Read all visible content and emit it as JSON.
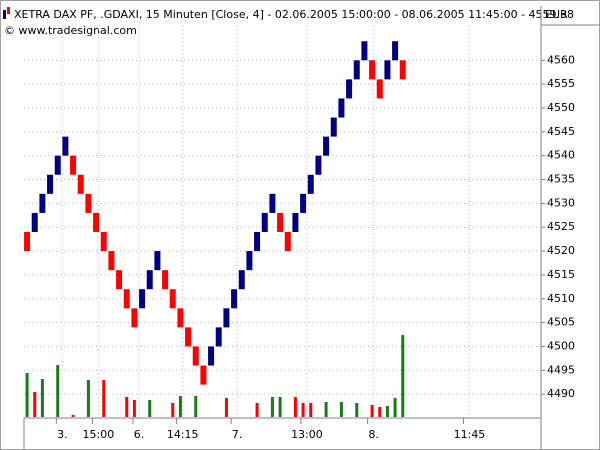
{
  "chart_data": {
    "type": "renko",
    "title": "XETRA DAX PF, .GDAXI, 15 Minuten [Close, 4] - 02.06.2005 15:00:00 - 08.06.2005 11:45:00 - 4559.38",
    "currency": "EUR",
    "copyright": "© www.tradesignal.com",
    "up_color": "#000080",
    "down_color": "#ff0000",
    "open": [
      4524,
      4524,
      4528,
      4532,
      4536,
      4540,
      4540,
      4536,
      4532,
      4528,
      4524,
      4520,
      4516,
      4512,
      4508,
      4508,
      4512,
      4516,
      4516,
      4512,
      4508,
      4504,
      4500,
      4496,
      4496,
      4500,
      4504,
      4508,
      4512,
      4516,
      4520,
      4524,
      4528,
      4528,
      4524,
      4524,
      4528,
      4532,
      4536,
      4540,
      4544,
      4548,
      4552,
      4556,
      4560,
      4560,
      4556,
      4556,
      4560,
      4560
    ],
    "close": [
      4520,
      4528,
      4532,
      4536,
      4540,
      4544,
      4536,
      4532,
      4528,
      4524,
      4520,
      4516,
      4512,
      4508,
      4504,
      4512,
      4516,
      4520,
      4512,
      4508,
      4504,
      4500,
      4496,
      4492,
      4500,
      4504,
      4508,
      4512,
      4516,
      4520,
      4524,
      4528,
      4532,
      4524,
      4520,
      4528,
      4532,
      4536,
      4540,
      4544,
      4548,
      4552,
      4556,
      4560,
      4564,
      4556,
      4552,
      4560,
      4564,
      4556
    ],
    "volume": [
      44,
      25,
      38,
      null,
      52,
      null,
      2,
      null,
      37,
      null,
      37,
      null,
      null,
      20,
      17,
      null,
      17,
      null,
      null,
      14,
      21,
      null,
      21,
      null,
      null,
      null,
      19,
      null,
      null,
      null,
      14,
      null,
      20,
      20,
      null,
      20,
      14,
      14,
      null,
      15,
      null,
      15,
      null,
      14,
      null,
      12,
      10,
      11,
      19,
      82
    ],
    "volume_colors": [
      "#1a7a1a",
      "#ff0000",
      "#1a7a1a",
      null,
      "#1a7a1a",
      null,
      "#ff0000",
      null,
      "#1a7a1a",
      null,
      "#ff0000",
      null,
      null,
      "#ff0000",
      "#ff0000",
      null,
      "#1a7a1a",
      null,
      null,
      "#ff0000",
      "#1a7a1a",
      null,
      "#1a7a1a",
      null,
      null,
      null,
      "#ff0000",
      null,
      null,
      null,
      "#ff0000",
      null,
      "#1a7a1a",
      "#1a7a1a",
      null,
      "#ff0000",
      "#ff0000",
      "#ff0000",
      null,
      "#1a7a1a",
      null,
      "#1a7a1a",
      null,
      "#1a7a1a",
      null,
      "#ff0000",
      "#ff0000",
      "#1a7a1a",
      "#1a7a1a",
      "#1a7a1a"
    ],
    "volume_lim": [
      0,
      100
    ],
    "xlim": [
      -0.4,
      66.9
    ],
    "xticks": [
      {
        "value": 4.6,
        "label": "3."
      },
      {
        "value": 9.3,
        "label": "15:00"
      },
      {
        "value": 14.6,
        "label": "6."
      },
      {
        "value": 20.3,
        "label": "14:15"
      },
      {
        "value": 27.4,
        "label": "7."
      },
      {
        "value": 36.5,
        "label": "13:00"
      },
      {
        "value": 45.2,
        "label": "8."
      },
      {
        "value": 57.7,
        "label": "11:45"
      }
    ],
    "ylim": [
      4485,
      4567.4
    ],
    "yticks": [
      4490,
      4495,
      4500,
      4505,
      4510,
      4515,
      4520,
      4525,
      4530,
      4535,
      4540,
      4545,
      4550,
      4555,
      4560
    ],
    "grid": true
  }
}
